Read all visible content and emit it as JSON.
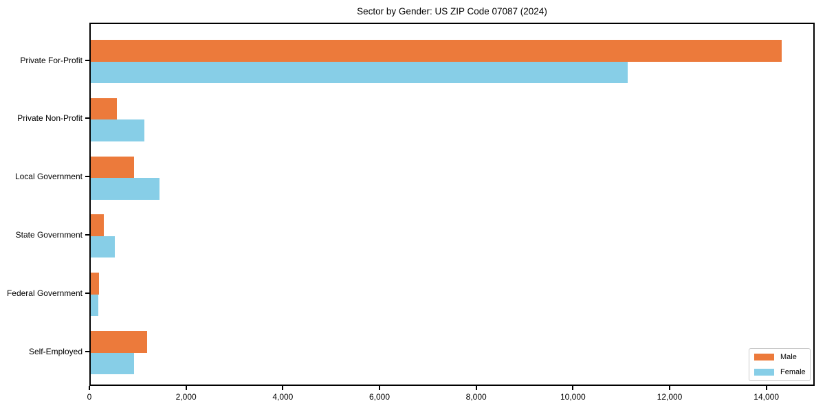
{
  "chart_data": {
    "type": "bar",
    "orientation": "horizontal",
    "title": "Sector by Gender: US ZIP Code 07087 (2024)",
    "categories": [
      "Private For-Profit",
      "Private Non-Profit",
      "Local Government",
      "State Government",
      "Federal Government",
      "Self-Employed"
    ],
    "series": [
      {
        "name": "Male",
        "color": "#EC7A3B",
        "values": [
          14290,
          540,
          895,
          270,
          170,
          1165
        ]
      },
      {
        "name": "Female",
        "color": "#87CEE7",
        "values": [
          11110,
          1110,
          1420,
          500,
          155,
          895
        ]
      }
    ],
    "xlabel": "",
    "ylabel": "",
    "xlim": [
      0,
      15000
    ],
    "xticks": [
      0,
      2000,
      4000,
      6000,
      8000,
      10000,
      12000,
      14000
    ],
    "xtick_labels": [
      "0",
      "2,000",
      "4,000",
      "6,000",
      "8,000",
      "10,000",
      "12,000",
      "14,000"
    ],
    "grid": false,
    "legend": {
      "position": "lower right",
      "entries": [
        "Male",
        "Female"
      ]
    }
  },
  "colors": {
    "male": "#EC7A3B",
    "female": "#87CEE7",
    "axis": "#000000",
    "legend_border": "#c9c9c9",
    "background": "#ffffff"
  }
}
